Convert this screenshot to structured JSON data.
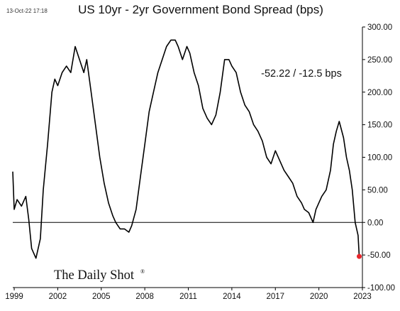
{
  "header": {
    "timestamp": "13-Oct-22 17:18",
    "title": "US 10yr - 2yr Government Bond Spread (bps)"
  },
  "annotation": "-52.22  /  -12.5 bps",
  "brand": {
    "name": "The Daily Shot",
    "mark": "®"
  },
  "colors": {
    "line": "#000000",
    "marker": "#e8262b",
    "zero_line": "#000000",
    "axis": "#000000"
  },
  "chart_data": {
    "type": "line",
    "title": "US 10yr - 2yr Government Bond Spread (bps)",
    "xlabel": "",
    "ylabel": "",
    "x_ticks": [
      "1999",
      "2002",
      "2005",
      "2008",
      "2011",
      "2014",
      "2017",
      "2020",
      "2023"
    ],
    "x_tick_values": [
      1999,
      2002,
      2005,
      2008,
      2011,
      2014,
      2017,
      2020,
      2023
    ],
    "y_ticks": [
      "300.00",
      "250.00",
      "200.00",
      "150.00",
      "100.00",
      "50.00",
      "0.00",
      "-50.00",
      "-100.00"
    ],
    "y_tick_values": [
      300,
      250,
      200,
      150,
      100,
      50,
      0,
      -50,
      -100
    ],
    "xlim": [
      1998.9,
      2023.0
    ],
    "ylim": [
      -100,
      300
    ],
    "y_axis_position": "right",
    "grid": false,
    "reference_line": 0,
    "last_point": {
      "x": 2022.78,
      "y": -52.22
    },
    "series": [
      {
        "x": [
          1998.9,
          1999.0,
          1999.2,
          1999.5,
          1999.8,
          2000.0,
          2000.2,
          2000.5,
          2000.8,
          2001.0,
          2001.3,
          2001.6,
          2001.8,
          2002.0,
          2002.3,
          2002.6,
          2002.9,
          2003.2,
          2003.5,
          2003.8,
          2004.0,
          2004.3,
          2004.6,
          2004.9,
          2005.2,
          2005.5,
          2005.8,
          2006.0,
          2006.3,
          2006.6,
          2006.9,
          2007.1,
          2007.4,
          2007.7,
          2008.0,
          2008.3,
          2008.6,
          2008.9,
          2009.2,
          2009.5,
          2009.8,
          2010.1,
          2010.3,
          2010.6,
          2010.9,
          2011.1,
          2011.4,
          2011.7,
          2012.0,
          2012.3,
          2012.6,
          2012.9,
          2013.2,
          2013.5,
          2013.8,
          2014.0,
          2014.3,
          2014.6,
          2014.9,
          2015.2,
          2015.5,
          2015.8,
          2016.1,
          2016.4,
          2016.7,
          2017.0,
          2017.3,
          2017.6,
          2017.9,
          2018.2,
          2018.5,
          2018.8,
          2019.0,
          2019.3,
          2019.6,
          2019.8,
          2020.0,
          2020.2,
          2020.5,
          2020.8,
          2021.0,
          2021.2,
          2021.4,
          2021.7,
          2021.9,
          2022.1,
          2022.3,
          2022.5,
          2022.7,
          2022.78
        ],
        "y": [
          78,
          20,
          35,
          25,
          40,
          5,
          -40,
          -55,
          -25,
          50,
          120,
          200,
          220,
          210,
          230,
          240,
          230,
          270,
          250,
          230,
          250,
          200,
          150,
          100,
          60,
          30,
          10,
          0,
          -10,
          -10,
          -15,
          -5,
          20,
          70,
          120,
          170,
          200,
          230,
          250,
          270,
          280,
          280,
          270,
          250,
          270,
          260,
          230,
          210,
          175,
          160,
          150,
          165,
          200,
          250,
          250,
          240,
          230,
          200,
          180,
          170,
          150,
          140,
          125,
          100,
          90,
          110,
          95,
          80,
          70,
          60,
          40,
          30,
          20,
          15,
          0,
          20,
          30,
          40,
          50,
          80,
          120,
          140,
          155,
          130,
          100,
          80,
          50,
          0,
          -20,
          -52.22
        ]
      }
    ]
  }
}
